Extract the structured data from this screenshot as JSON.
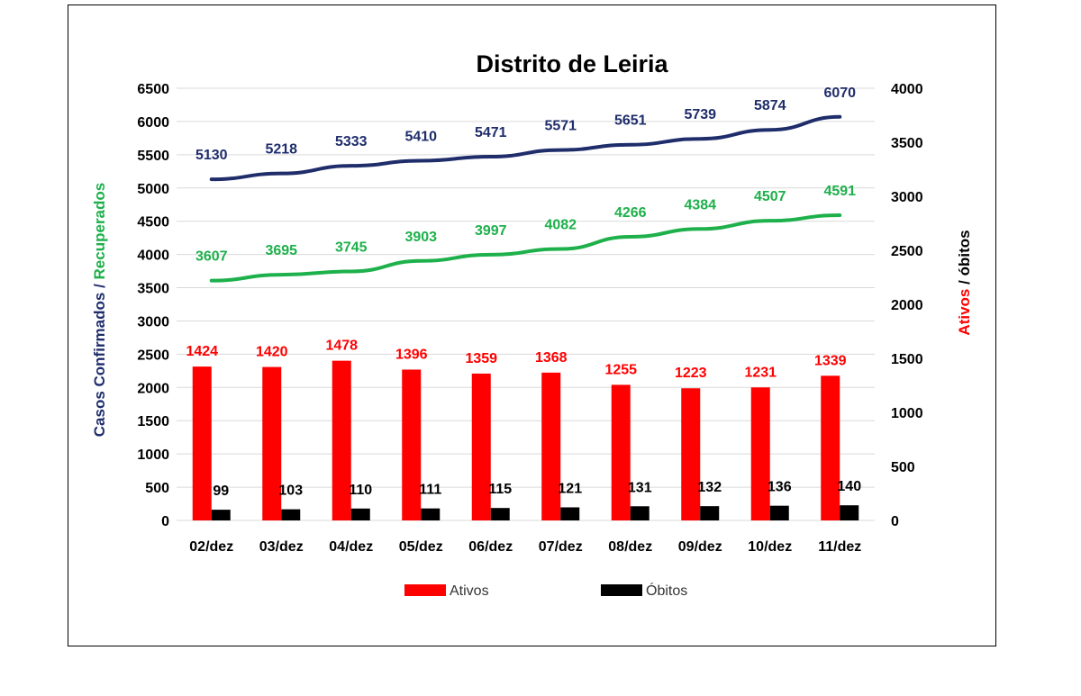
{
  "chart_data": {
    "type": "bar",
    "title": "Distrito de Leiria",
    "categories": [
      "02/dez",
      "03/dez",
      "04/dez",
      "05/dez",
      "06/dez",
      "07/dez",
      "08/dez",
      "09/dez",
      "10/dez",
      "11/dez"
    ],
    "ylabel_left": {
      "parts": [
        {
          "text": "Casos Confirmados / ",
          "color": "#1F2D6B"
        },
        {
          "text": "Recuperados",
          "color": "#1DB04B"
        }
      ]
    },
    "ylabel_right": {
      "parts": [
        {
          "text": "Ativos",
          "color": "#FF0000"
        },
        {
          "text": " / óbitos",
          "color": "#000000"
        }
      ]
    },
    "ylim_left": [
      0,
      6500
    ],
    "yticks_left": [
      0,
      500,
      1000,
      1500,
      2000,
      2500,
      3000,
      3500,
      4000,
      4500,
      5000,
      5500,
      6000,
      6500
    ],
    "ylim_right": [
      0,
      4000
    ],
    "yticks_right": [
      0,
      500,
      1000,
      1500,
      2000,
      2500,
      3000,
      3500,
      4000
    ],
    "grid": true,
    "legend_position": "bottom",
    "series": [
      {
        "name": "Ativos",
        "type": "bar",
        "axis": "right",
        "color": "#FF0000",
        "values": [
          1424,
          1420,
          1478,
          1396,
          1359,
          1368,
          1255,
          1223,
          1231,
          1339
        ]
      },
      {
        "name": "Óbitos",
        "type": "bar",
        "axis": "right",
        "color": "#000000",
        "values": [
          99,
          103,
          110,
          111,
          115,
          121,
          131,
          132,
          136,
          140
        ]
      },
      {
        "type": "line",
        "axis": "left",
        "color": "#1F2D6B",
        "values": [
          5130,
          5218,
          5333,
          5410,
          5471,
          5571,
          5651,
          5739,
          5874,
          6070
        ]
      },
      {
        "type": "line",
        "axis": "left",
        "color": "#1DB04B",
        "values": [
          3607,
          3695,
          3745,
          3903,
          3997,
          4082,
          4266,
          4384,
          4507,
          4591
        ]
      }
    ]
  }
}
